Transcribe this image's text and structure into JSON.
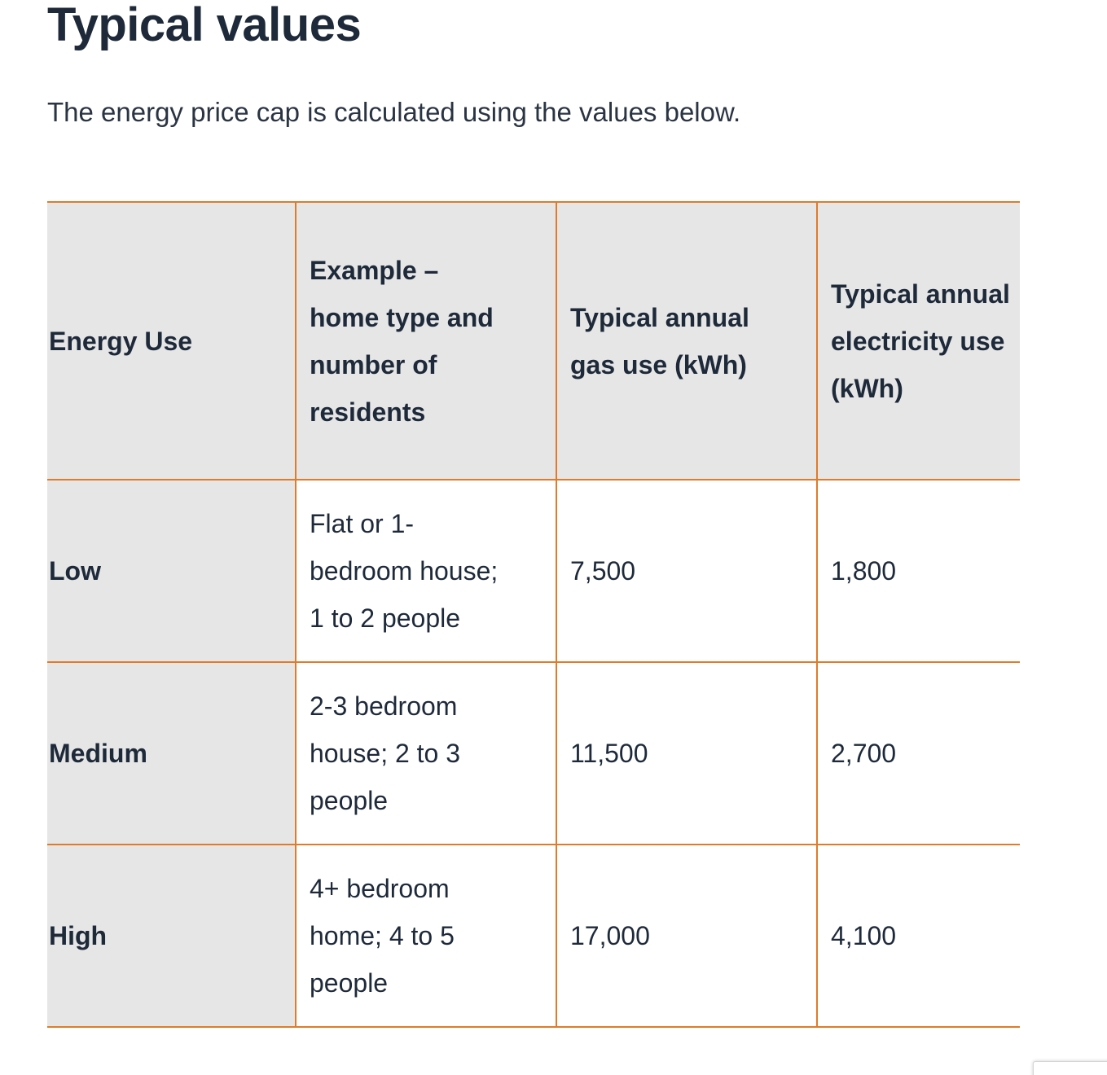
{
  "page": {
    "title": "Typical values",
    "intro": "The energy price cap is calculated using the values below."
  },
  "table": {
    "headers": {
      "energy_use": "Energy Use",
      "example_line1": "Example –",
      "example_line2": "home type and",
      "example_line3": "number of",
      "example_line4": "residents",
      "gas_line1": "Typical annual",
      "gas_line2": "gas use (kWh)",
      "elec_line1": "Typical annual",
      "elec_line2": "electricity use",
      "elec_line3": "(kWh)"
    },
    "rows": [
      {
        "energy_use": "Low",
        "example_line1": "Flat or 1-",
        "example_line2": "bedroom house;",
        "example_line3": "1 to 2 people",
        "gas": "7,500",
        "electricity": "1,800"
      },
      {
        "energy_use": "Medium",
        "example_line1": "2-3 bedroom",
        "example_line2": "house; 2 to 3",
        "example_line3": "people",
        "gas": "11,500",
        "electricity": "2,700"
      },
      {
        "energy_use": "High",
        "example_line1": "4+ bedroom",
        "example_line2": "home; 4 to 5",
        "example_line3": "people",
        "gas": "17,000",
        "electricity": "4,100"
      }
    ]
  },
  "colors": {
    "table_border": "#e07b2a",
    "header_background": "#e6e6e6",
    "text": "#1e2a3a"
  }
}
